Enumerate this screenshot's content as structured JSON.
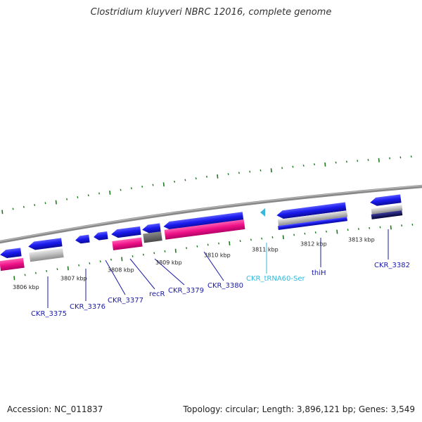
{
  "title": "Clostridium kluyveri NBRC 12016, complete genome",
  "footer": {
    "accession": "Accession: NC_011837",
    "topology": "Topology: circular; Length: 3,896,121 bp; Genes: 3,549"
  },
  "kbp_labels": [
    "3806 kbp",
    "3807 kbp",
    "3808 kbp",
    "3809 kbp",
    "3810 kbp",
    "3811 kbp",
    "3812 kbp",
    "3813 kbp"
  ],
  "gene_labels": [
    {
      "text": "CKR_3375",
      "kind": "cds"
    },
    {
      "text": "CKR_3376",
      "kind": "cds"
    },
    {
      "text": "CKR_3377",
      "kind": "cds"
    },
    {
      "text": "recR",
      "kind": "cds"
    },
    {
      "text": "CKR_3379",
      "kind": "cds"
    },
    {
      "text": "CKR_3380",
      "kind": "cds"
    },
    {
      "text": "CKR_tRNA60-Ser",
      "kind": "trna"
    },
    {
      "text": "thiH",
      "kind": "cds"
    },
    {
      "text": "CKR_3382",
      "kind": "cds"
    }
  ],
  "colors": {
    "cds": "#1010dd",
    "cds_pink": "#ee1188",
    "gray": "#b8b8b8",
    "dark_gray": "#666666",
    "navy": "#0a0a60",
    "trna": "#36b8dc",
    "tick": "#1f7a1f",
    "backbone": "#888888",
    "label": "#1a1aa8"
  }
}
